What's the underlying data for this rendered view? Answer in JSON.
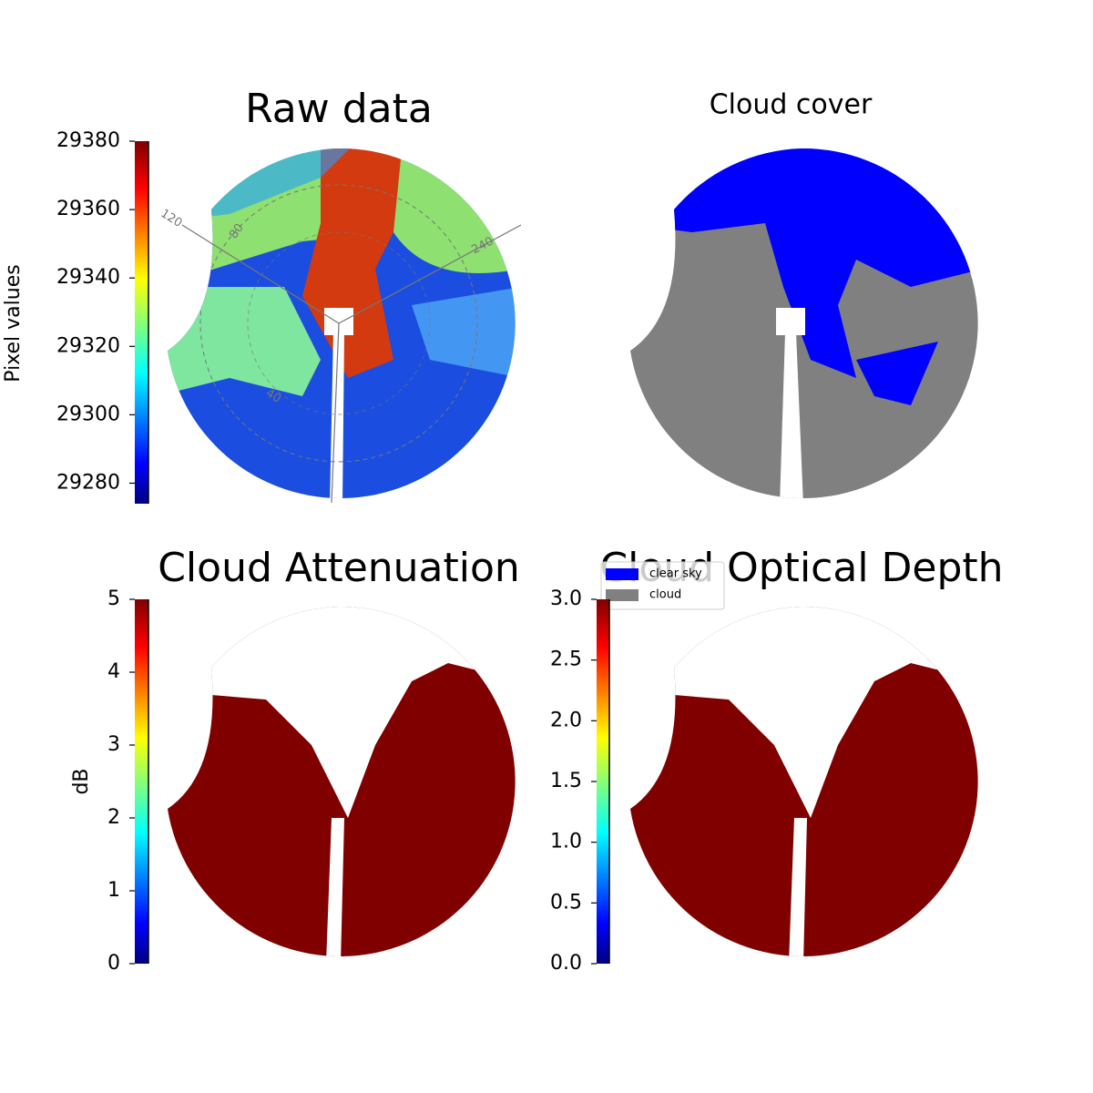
{
  "chart_data": [
    {
      "type": "image",
      "title": "Raw data",
      "colormap": "jet",
      "colorbar_label": "Pixel values",
      "ylim": [
        29274,
        29380
      ],
      "yticks": [
        29280,
        29300,
        29320,
        29340,
        29360,
        29380
      ],
      "annotations": [
        "120",
        "80",
        "240",
        "40"
      ]
    },
    {
      "type": "image",
      "title": "Cloud cover",
      "series": [
        {
          "name": "clear sky",
          "color": "#0000ff"
        },
        {
          "name": "cloud",
          "color": "#808080"
        }
      ]
    },
    {
      "type": "image",
      "title": "Cloud Attenuation",
      "colormap": "jet",
      "colorbar_label": "dB",
      "ylim": [
        0,
        5
      ],
      "yticks": [
        0,
        1,
        2,
        3,
        4,
        5
      ]
    },
    {
      "type": "image",
      "title": "Cloud Optical Depth",
      "colormap": "jet",
      "ylim": [
        0,
        3
      ],
      "yticks": [
        {
          "value": 0,
          "label": "0.0"
        },
        0.5,
        {
          "value": 1,
          "label": "1.0"
        },
        1.5,
        {
          "value": 2,
          "label": "2.0"
        },
        2.5,
        {
          "value": 3,
          "label": "3.0"
        }
      ]
    }
  ]
}
